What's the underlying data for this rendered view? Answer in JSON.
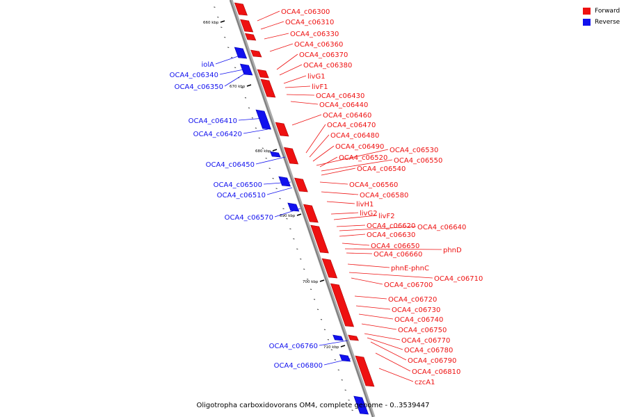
{
  "colors": {
    "forward": "#ee1111",
    "reverse": "#1111ee",
    "axis": "#999999"
  },
  "legend": {
    "forward_label": "Forward",
    "reverse_label": "Reverse"
  },
  "caption": "Oligotropha carboxidovorans OM4, complete genome - 0..3539447",
  "scale_labels": [
    "660 kbp",
    "670 kbp",
    "680 kbp",
    "690 kbp",
    "700 kbp",
    "710 kbp"
  ],
  "forward_genes": [
    "OCA4_c06300",
    "OCA4_c06310",
    "OCA4_c06330",
    "OCA4_c06360",
    "OCA4_c06370",
    "OCA4_c06380",
    "livG1",
    "livF1",
    "OCA4_c06430",
    "OCA4_c06440",
    "OCA4_c06460",
    "OCA4_c06470",
    "OCA4_c06480",
    "OCA4_c06490",
    "OCA4_c06530",
    "OCA4_c06520",
    "OCA4_c06550",
    "OCA4_c06540",
    "OCA4_c06560",
    "OCA4_c06580",
    "livH1",
    "livG2",
    "livF2",
    "OCA4_c06620",
    "OCA4_c06640",
    "OCA4_c06630",
    "OCA4_c06650",
    "phnD",
    "OCA4_c06660",
    "phnE-phnC",
    "OCA4_c06710",
    "OCA4_c06700",
    "OCA4_c06720",
    "OCA4_c06730",
    "OCA4_c06740",
    "OCA4_c06750",
    "OCA4_c06770",
    "OCA4_c06780",
    "OCA4_c06790",
    "OCA4_c06810",
    "czcA1"
  ],
  "reverse_genes": [
    "iolA",
    "OCA4_c06340",
    "OCA4_c06350",
    "OCA4_c06410",
    "OCA4_c06420",
    "OCA4_c06450",
    "OCA4_c06500",
    "OCA4_c06510",
    "OCA4_c06570",
    "OCA4_c06760",
    "OCA4_c06800"
  ]
}
